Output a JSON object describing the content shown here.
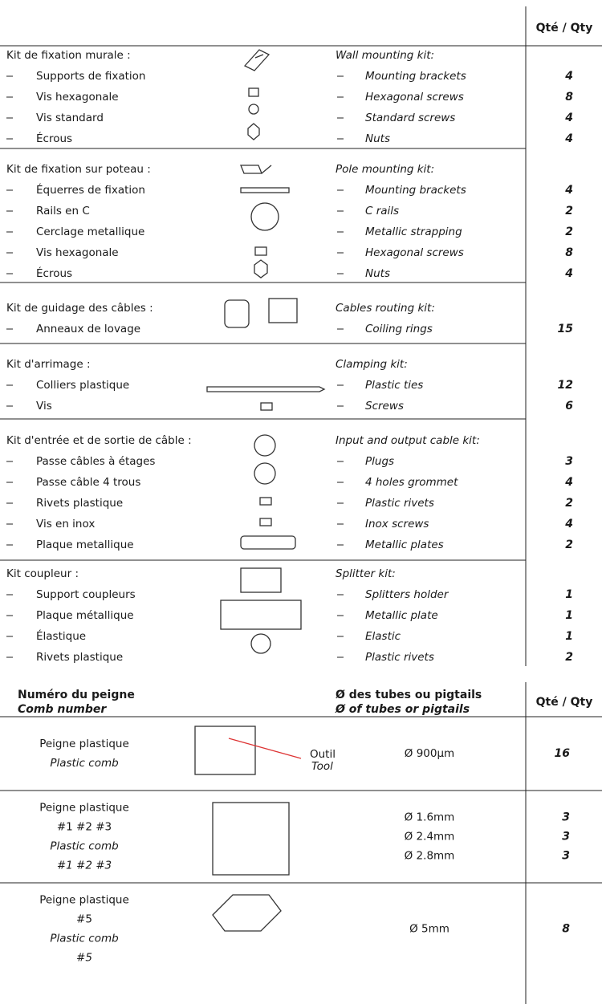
{
  "header": {
    "qty_label": "Qté / Qty"
  },
  "kits": [
    {
      "title_fr": "Kit de fixation murale :",
      "title_en": "Wall mounting kit:",
      "items": [
        {
          "fr": "Supports de fixation",
          "en": "Mounting brackets",
          "qty": 4
        },
        {
          "fr": "Vis hexagonale",
          "en": "Hexagonal screws",
          "qty": 8
        },
        {
          "fr": "Vis standard",
          "en": "Standard screws",
          "qty": 4
        },
        {
          "fr": "Écrous",
          "en": "Nuts",
          "qty": 4
        }
      ]
    },
    {
      "title_fr": "Kit de fixation sur poteau :",
      "title_en": "Pole mounting kit:",
      "items": [
        {
          "fr": "Équerres de fixation",
          "en": "Mounting brackets",
          "qty": 4
        },
        {
          "fr": "Rails en C",
          "en": "C rails",
          "qty": 2
        },
        {
          "fr": "Cerclage metallique",
          "en": "Metallic strapping",
          "qty": 2
        },
        {
          "fr": "Vis hexagonale",
          "en": "Hexagonal screws",
          "qty": 8
        },
        {
          "fr": "Écrous",
          "en": "Nuts",
          "qty": 4
        }
      ]
    },
    {
      "title_fr": "Kit de guidage des câbles :",
      "title_en": "Cables routing kit:",
      "items": [
        {
          "fr": "Anneaux de lovage",
          "en": "Coiling rings",
          "qty": 15
        }
      ]
    },
    {
      "title_fr": "Kit d'arrimage :",
      "title_en": "Clamping kit:",
      "items": [
        {
          "fr": "Colliers plastique",
          "en": "Plastic ties",
          "qty": 12
        },
        {
          "fr": "Vis",
          "en": "Screws",
          "qty": 6
        }
      ]
    },
    {
      "title_fr": "Kit d'entrée et de sortie de câble :",
      "title_en": "Input and output cable kit:",
      "items": [
        {
          "fr": "Passe câbles à étages",
          "en": "Plugs",
          "qty": 3
        },
        {
          "fr": "Passe câble 4 trous",
          "en": "4 holes grommet",
          "qty": 4
        },
        {
          "fr": "Rivets plastique",
          "en": "Plastic rivets",
          "qty": 2
        },
        {
          "fr": "Vis en inox",
          "en": "Inox screws",
          "qty": 4
        },
        {
          "fr": "Plaque metallique",
          "en": "Metallic plates",
          "qty": 2
        }
      ]
    },
    {
      "title_fr": "Kit coupleur  :",
      "title_en": "Splitter kit:",
      "items": [
        {
          "fr": "Support coupleurs",
          "en": "Splitters holder",
          "qty": 1
        },
        {
          "fr": "Plaque métallique",
          "en": "Metallic plate",
          "qty": 1
        },
        {
          "fr": "Élastique",
          "en": "Elastic",
          "qty": 1
        },
        {
          "fr": "Rivets plastique",
          "en": "Plastic rivets",
          "qty": 2
        }
      ]
    }
  ],
  "comb_table": {
    "headers": {
      "number_fr": "Numéro du peigne",
      "number_en": "Comb number",
      "diameter_fr": "Ø des tubes ou pigtails",
      "diameter_en": "Ø of tubes or pigtails",
      "qty": "Qté / Qty"
    },
    "tool_labels": [
      "Outil",
      "Tool"
    ],
    "rows": [
      {
        "name_lines": [
          "Peigne plastique",
          "Plastic comb"
        ],
        "diameters": [
          "Ø 900µm"
        ],
        "qtys": [
          16
        ]
      },
      {
        "name_lines": [
          "Peigne plastique",
          "#1 #2 #3",
          "Plastic comb",
          "#1 #2 #3"
        ],
        "diameters": [
          "Ø  1.6mm",
          "Ø 2.4mm",
          "Ø 2.8mm"
        ],
        "qtys": [
          3,
          3,
          3
        ]
      },
      {
        "name_lines": [
          "Peigne plastique",
          "#5",
          "Plastic comb",
          "#5"
        ],
        "diameters": [
          "Ø 5mm"
        ],
        "qtys": [
          8
        ]
      }
    ]
  }
}
